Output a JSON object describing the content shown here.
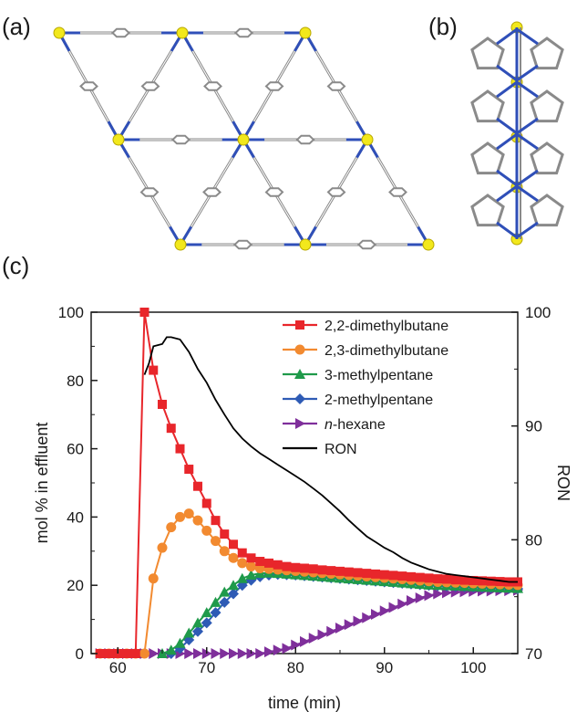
{
  "panel_labels": {
    "a": "(a)",
    "b": "(b)",
    "c": "(c)"
  },
  "structure_colors": {
    "node": "#f2e81c",
    "node_edge": "#b8a800",
    "blue": "#2f4fb8",
    "gray": "#8a8a8a"
  },
  "chart_data": {
    "type": "line",
    "title": "",
    "xlabel": "time (min)",
    "ylabel": "mol % in effluent",
    "y2label": "RON",
    "xlim": [
      57,
      105
    ],
    "ylim": [
      0,
      100
    ],
    "y2lim": [
      70,
      100
    ],
    "xticks": [
      60,
      70,
      80,
      90,
      100
    ],
    "yticks": [
      0,
      20,
      40,
      60,
      80,
      100
    ],
    "y2ticks": [
      70,
      80,
      90,
      100
    ],
    "legend_position": "top-right",
    "series": [
      {
        "name": "2,2-dimethylbutane",
        "color": "#e8262b",
        "marker": "square",
        "x": [
          58,
          59,
          60,
          61,
          62,
          63,
          64,
          65,
          66,
          67,
          68,
          69,
          70,
          71,
          72,
          73,
          74,
          75,
          76,
          77,
          78,
          79,
          80,
          81,
          82,
          83,
          84,
          85,
          86,
          87,
          88,
          89,
          90,
          91,
          92,
          93,
          94,
          95,
          96,
          97,
          98,
          99,
          100,
          101,
          102,
          103,
          104,
          105
        ],
        "values": [
          0,
          0,
          0,
          0,
          0,
          100,
          83,
          73,
          66,
          60,
          54,
          49,
          44,
          39,
          35,
          32,
          29.5,
          28,
          27,
          26.5,
          26,
          25.5,
          25.2,
          25,
          24.8,
          24.5,
          24.3,
          24.1,
          23.9,
          23.7,
          23.5,
          23.3,
          23.1,
          22.9,
          22.7,
          22.5,
          22.3,
          22.1,
          21.9,
          21.8,
          21.6,
          21.5,
          21.4,
          21.3,
          21.2,
          21.1,
          21.0,
          21.0
        ]
      },
      {
        "name": "2,3-dimethylbutane",
        "color": "#f28a30",
        "marker": "circle",
        "x": [
          58,
          59,
          60,
          61,
          62,
          63,
          64,
          65,
          66,
          67,
          68,
          69,
          70,
          71,
          72,
          73,
          74,
          75,
          76,
          77,
          78,
          79,
          80,
          81,
          82,
          83,
          84,
          85,
          86,
          87,
          88,
          89,
          90,
          91,
          92,
          93,
          94,
          95,
          96,
          97,
          98,
          99,
          100,
          101,
          102,
          103,
          104,
          105
        ],
        "values": [
          0,
          0,
          0,
          0,
          0,
          0,
          22,
          31,
          37,
          40,
          41,
          39,
          36,
          33,
          30,
          28,
          26.5,
          25.5,
          25,
          24.8,
          24.6,
          24.4,
          24.2,
          24.0,
          23.8,
          23.6,
          23.4,
          23.2,
          23.0,
          22.8,
          22.6,
          22.4,
          22.2,
          22.0,
          21.8,
          21.6,
          21.4,
          21.2,
          21.0,
          20.9,
          20.8,
          20.7,
          20.6,
          20.5,
          20.4,
          20.3,
          20.2,
          20.1
        ]
      },
      {
        "name": "3-methylpentane",
        "color": "#1f9a4a",
        "marker": "triangle-up",
        "x": [
          65,
          66,
          67,
          68,
          69,
          70,
          71,
          72,
          73,
          74,
          75,
          76,
          77,
          78,
          79,
          80,
          81,
          82,
          83,
          84,
          85,
          86,
          87,
          88,
          89,
          90,
          91,
          92,
          93,
          94,
          95,
          96,
          97,
          98,
          99,
          100,
          101,
          102,
          103,
          104,
          105
        ],
        "values": [
          0,
          1,
          3,
          6,
          9,
          12,
          15,
          18,
          20,
          22,
          23,
          23.5,
          23.6,
          23.5,
          23.3,
          23.1,
          22.9,
          22.7,
          22.5,
          22.3,
          22.1,
          21.9,
          21.7,
          21.5,
          21.3,
          21.1,
          20.9,
          20.7,
          20.5,
          20.3,
          20.1,
          20.0,
          19.9,
          19.8,
          19.7,
          19.6,
          19.5,
          19.4,
          19.3,
          19.2,
          19.1
        ]
      },
      {
        "name": "2-methylpentane",
        "color": "#2e5bb5",
        "marker": "diamond",
        "x": [
          66,
          67,
          68,
          69,
          70,
          71,
          72,
          73,
          74,
          75,
          76,
          77,
          78,
          79,
          80,
          81,
          82,
          83,
          84,
          85,
          86,
          87,
          88,
          89,
          90,
          91,
          92,
          93,
          94,
          95,
          96,
          97,
          98,
          99,
          100,
          101,
          102,
          103,
          104,
          105
        ],
        "values": [
          0,
          1.5,
          4,
          6.5,
          9,
          12,
          15,
          17.5,
          20,
          21.5,
          22.5,
          23,
          23.2,
          23.1,
          23.0,
          22.8,
          22.6,
          22.4,
          22.2,
          22.0,
          21.8,
          21.6,
          21.4,
          21.2,
          21.0,
          20.8,
          20.6,
          20.4,
          20.2,
          20.0,
          19.9,
          19.8,
          19.7,
          19.6,
          19.5,
          19.4,
          19.3,
          19.2,
          19.1,
          19.0
        ]
      },
      {
        "name": "n-hexane",
        "color": "#7f2f9b",
        "marker": "triangle-right",
        "x": [
          58,
          59,
          60,
          61,
          62,
          63,
          64,
          65,
          66,
          67,
          68,
          69,
          70,
          71,
          72,
          73,
          74,
          75,
          76,
          77,
          78,
          79,
          80,
          81,
          82,
          83,
          84,
          85,
          86,
          87,
          88,
          89,
          90,
          91,
          92,
          93,
          94,
          95,
          96,
          97,
          98,
          99,
          100,
          101,
          102,
          103,
          104,
          105
        ],
        "values": [
          0,
          0,
          0,
          0,
          0,
          0,
          0,
          0,
          0,
          0,
          0,
          0,
          0,
          0,
          0,
          0,
          0,
          0,
          0,
          0.5,
          1,
          1.5,
          2.5,
          3.5,
          4.5,
          5.5,
          6.5,
          7.5,
          8.5,
          9.5,
          10.5,
          11.5,
          12.5,
          13.5,
          14.5,
          15.5,
          16.3,
          17,
          17.5,
          17.8,
          18,
          18.1,
          18.2,
          18.3,
          18.3,
          18.4,
          18.4,
          18.5
        ]
      },
      {
        "name": "RON",
        "color": "#000000",
        "marker": "none",
        "axis": "right",
        "x": [
          63,
          63.5,
          64,
          65,
          65.5,
          66,
          67,
          68,
          69,
          70,
          71,
          72,
          73,
          74,
          75,
          76,
          77,
          78,
          79,
          80,
          81,
          82,
          83,
          84,
          85,
          86,
          87,
          88,
          89,
          90,
          91,
          92,
          93,
          94,
          95,
          96,
          97,
          98,
          99,
          100,
          101,
          102,
          103,
          104,
          105
        ],
        "values": [
          94.5,
          95.5,
          97,
          97.2,
          97.8,
          97.8,
          97.6,
          96.5,
          95,
          93.8,
          92.3,
          91,
          89.8,
          88.9,
          88.2,
          87.6,
          87.1,
          86.6,
          86.1,
          85.6,
          85.1,
          84.5,
          83.9,
          83.2,
          82.5,
          81.7,
          81.0,
          80.3,
          79.8,
          79.3,
          78.9,
          78.4,
          78.0,
          77.7,
          77.4,
          77.2,
          77.0,
          76.9,
          76.8,
          76.7,
          76.6,
          76.5,
          76.4,
          76.3,
          76.3
        ]
      }
    ]
  }
}
